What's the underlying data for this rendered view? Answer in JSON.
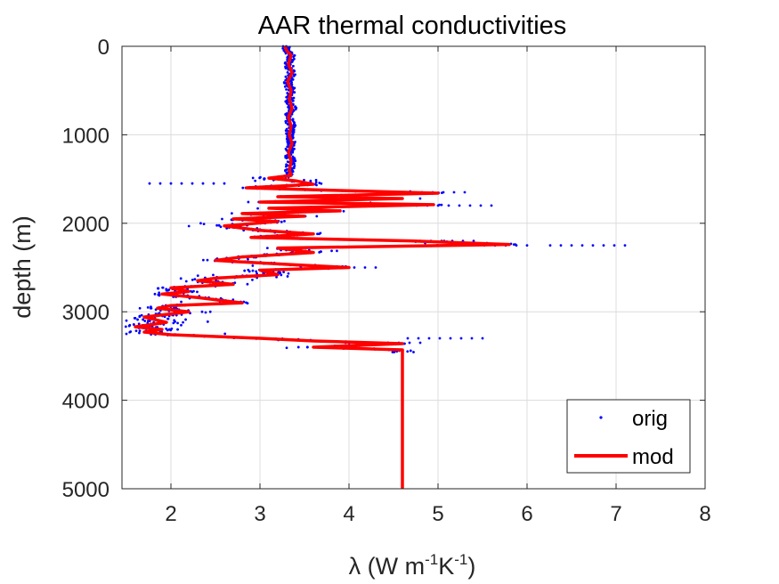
{
  "colors": {
    "orig": "#0000ff",
    "mod": "#ff0000",
    "grid": "#dcdcdc",
    "axis": "#262626"
  },
  "chart_data": {
    "type": "line",
    "title": "AAR thermal conductivities",
    "xlabel_symbol": "λ",
    "xlabel_units": {
      "open": "(W m",
      "exp1": "-1",
      "mid": "K",
      "exp2": "-1",
      "close": ")"
    },
    "ylabel": "depth (m)",
    "xlim": [
      1.45,
      8
    ],
    "ylim": [
      0,
      5000
    ],
    "y_reversed": true,
    "xticks": [
      2,
      3,
      4,
      5,
      6,
      7,
      8
    ],
    "yticks": [
      0,
      1000,
      2000,
      3000,
      4000,
      5000
    ],
    "xtick_labels": [
      "2",
      "3",
      "4",
      "5",
      "6",
      "7",
      "8"
    ],
    "ytick_labels": [
      "0",
      "1000",
      "2000",
      "3000",
      "4000",
      "5000"
    ],
    "grid": true,
    "legend": {
      "position": "bottom-right",
      "entries": [
        "orig",
        "mod"
      ]
    },
    "series": [
      {
        "name": "orig",
        "style": "dots",
        "description": "scattered measured values around the mod profile",
        "outliers": [
          {
            "x": 5.3,
            "y": 1650
          },
          {
            "x": 5.6,
            "y": 1800
          },
          {
            "x": 5.4,
            "y": 2200
          },
          {
            "x": 6.0,
            "y": 2250
          },
          {
            "x": 7.1,
            "y": 2250
          },
          {
            "x": 5.5,
            "y": 3300
          },
          {
            "x": 4.8,
            "y": 3350
          },
          {
            "x": 4.3,
            "y": 2500
          },
          {
            "x": 2.6,
            "y": 1550
          },
          {
            "x": 1.5,
            "y": 3100
          },
          {
            "x": 1.5,
            "y": 3250
          }
        ]
      },
      {
        "name": "mod",
        "style": "line",
        "points": [
          [
            3.28,
            0
          ],
          [
            3.3,
            50
          ],
          [
            3.35,
            100
          ],
          [
            3.32,
            200
          ],
          [
            3.36,
            300
          ],
          [
            3.31,
            400
          ],
          [
            3.35,
            500
          ],
          [
            3.33,
            600
          ],
          [
            3.36,
            700
          ],
          [
            3.32,
            800
          ],
          [
            3.35,
            900
          ],
          [
            3.33,
            1000
          ],
          [
            3.36,
            1100
          ],
          [
            3.32,
            1200
          ],
          [
            3.35,
            1300
          ],
          [
            3.33,
            1400
          ],
          [
            3.35,
            1460
          ],
          [
            3.1,
            1490
          ],
          [
            3.4,
            1520
          ],
          [
            3.6,
            1560
          ],
          [
            2.85,
            1600
          ],
          [
            3.9,
            1630
          ],
          [
            5.0,
            1660
          ],
          [
            3.2,
            1700
          ],
          [
            4.6,
            1720
          ],
          [
            3.0,
            1760
          ],
          [
            4.95,
            1790
          ],
          [
            3.1,
            1830
          ],
          [
            3.9,
            1860
          ],
          [
            2.8,
            1890
          ],
          [
            3.5,
            1920
          ],
          [
            2.7,
            1950
          ],
          [
            3.2,
            1980
          ],
          [
            2.6,
            2030
          ],
          [
            3.0,
            2080
          ],
          [
            3.6,
            2120
          ],
          [
            2.9,
            2160
          ],
          [
            4.7,
            2200
          ],
          [
            5.8,
            2240
          ],
          [
            3.2,
            2280
          ],
          [
            3.6,
            2330
          ],
          [
            2.8,
            2380
          ],
          [
            2.5,
            2420
          ],
          [
            3.4,
            2470
          ],
          [
            4.0,
            2500
          ],
          [
            3.0,
            2530
          ],
          [
            3.2,
            2580
          ],
          [
            2.5,
            2620
          ],
          [
            2.3,
            2650
          ],
          [
            2.7,
            2690
          ],
          [
            2.0,
            2730
          ],
          [
            2.2,
            2770
          ],
          [
            1.9,
            2800
          ],
          [
            2.3,
            2840
          ],
          [
            2.8,
            2900
          ],
          [
            2.0,
            2930
          ],
          [
            1.85,
            2960
          ],
          [
            2.2,
            3000
          ],
          [
            1.7,
            3060
          ],
          [
            1.95,
            3120
          ],
          [
            1.6,
            3170
          ],
          [
            1.9,
            3200
          ],
          [
            1.7,
            3230
          ],
          [
            2.0,
            3260
          ],
          [
            3.0,
            3300
          ],
          [
            3.6,
            3330
          ],
          [
            4.6,
            3360
          ],
          [
            3.6,
            3400
          ],
          [
            4.6,
            3430
          ],
          [
            4.6,
            5000
          ]
        ]
      }
    ]
  }
}
